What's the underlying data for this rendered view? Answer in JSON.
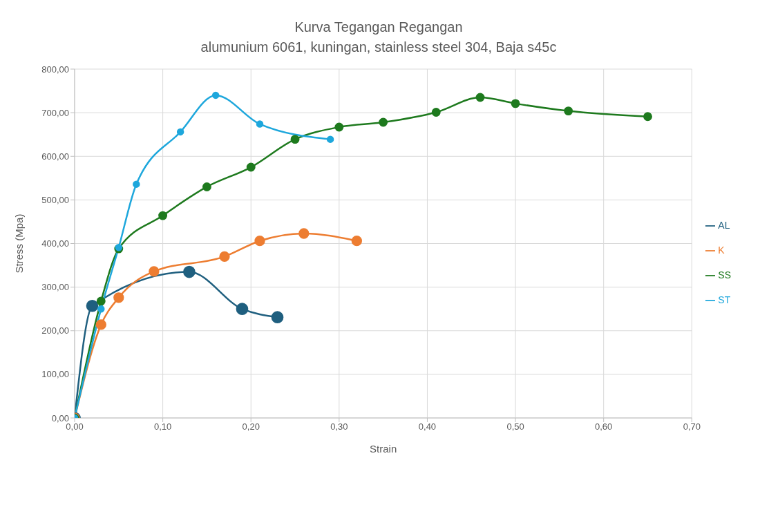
{
  "chart_data": {
    "type": "line",
    "title": "Kurva Tegangan Regangan",
    "subtitle": "alumunium 6061, kuningan, stainless steel 304, Baja s45c",
    "xlabel": "Strain",
    "ylabel": "Stress (Mpa)",
    "xlim": [
      0,
      0.7
    ],
    "xticks": [
      {
        "value": 0,
        "label": "0,00"
      },
      {
        "value": 0.1,
        "label": "0,10"
      },
      {
        "value": 0.2,
        "label": "0,20"
      },
      {
        "value": 0.3,
        "label": "0,30"
      },
      {
        "value": 0.4,
        "label": "0,40"
      },
      {
        "value": 0.5,
        "label": "0,50"
      },
      {
        "value": 0.6,
        "label": "0,60"
      },
      {
        "value": 0.7,
        "label": "0,70"
      }
    ],
    "ylim": [
      0,
      800
    ],
    "yticks": [
      {
        "value": 0,
        "label": "0,00"
      },
      {
        "value": 100,
        "label": "100,00"
      },
      {
        "value": 200,
        "label": "200,00"
      },
      {
        "value": 300,
        "label": "300,00"
      },
      {
        "value": 400,
        "label": "400,00"
      },
      {
        "value": 500,
        "label": "500,00"
      },
      {
        "value": 600,
        "label": "600,00"
      },
      {
        "value": 700,
        "label": "700,00"
      },
      {
        "value": 800,
        "label": "800,00"
      }
    ],
    "grid": true,
    "legend": "right",
    "marker": "circle",
    "line_style": "solid",
    "series": [
      {
        "name": "AL",
        "color": "#1f5f7f",
        "x": [
          0,
          0.02,
          0.13,
          0.19,
          0.23
        ],
        "values": [
          0,
          257,
          335,
          250,
          231
        ]
      },
      {
        "name": "K",
        "color": "#ed7d31",
        "x": [
          0,
          0.03,
          0.05,
          0.09,
          0.17,
          0.21,
          0.26,
          0.32
        ],
        "values": [
          0,
          214,
          276,
          336,
          370,
          406,
          423,
          406
        ]
      },
      {
        "name": "SS",
        "color": "#1e7a1e",
        "x": [
          0,
          0.03,
          0.05,
          0.1,
          0.15,
          0.2,
          0.25,
          0.3,
          0.35,
          0.41,
          0.46,
          0.5,
          0.56,
          0.65
        ],
        "values": [
          0,
          268,
          388,
          464,
          530,
          575,
          639,
          667,
          678,
          701,
          735,
          721,
          704,
          691
        ]
      },
      {
        "name": "ST",
        "color": "#1ea7dc",
        "x": [
          0,
          0.03,
          0.05,
          0.07,
          0.12,
          0.16,
          0.21,
          0.29
        ],
        "values": [
          0,
          250,
          391,
          536,
          656,
          740,
          674,
          639
        ]
      }
    ]
  }
}
